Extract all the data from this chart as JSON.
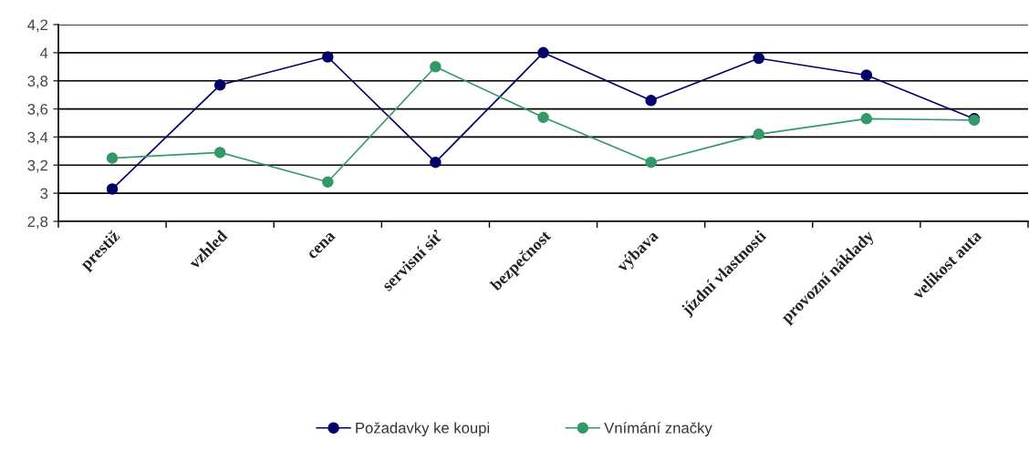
{
  "chart_data": {
    "type": "line",
    "categories": [
      "prestiž",
      "vzhled",
      "cena",
      "servisní síť",
      "bezpečnost",
      "výbava",
      "jízdní vlastnosti",
      "provozní náklady",
      "velikost auta"
    ],
    "series": [
      {
        "name": "Požadavky ke koupi",
        "color": "#000066",
        "values": [
          3.03,
          3.77,
          3.97,
          3.22,
          4.0,
          3.66,
          3.96,
          3.84,
          3.53
        ]
      },
      {
        "name": "Vnímání značky",
        "color": "#339966",
        "values": [
          3.25,
          3.29,
          3.08,
          3.9,
          3.54,
          3.22,
          3.42,
          3.53,
          3.52
        ]
      }
    ],
    "ylim": [
      2.8,
      4.2
    ],
    "yticks": [
      {
        "value": 2.8,
        "label": "2,8"
      },
      3,
      {
        "value": 3.2,
        "label": "3,2"
      },
      {
        "value": 3.4,
        "label": "3,4"
      },
      {
        "value": 3.6,
        "label": "3,6"
      },
      {
        "value": 3.8,
        "label": "3,8"
      },
      4,
      {
        "value": 4.2,
        "label": "4,2"
      }
    ],
    "grid": "y",
    "legend": "bottom",
    "marker": "circle",
    "line_style": "solid"
  }
}
